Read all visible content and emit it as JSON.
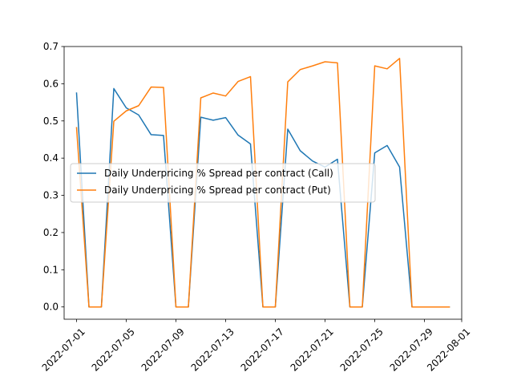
{
  "chart_data": {
    "type": "line",
    "title": "",
    "xlabel": "",
    "ylabel": "",
    "x": [
      "2022-07-01",
      "2022-07-02",
      "2022-07-03",
      "2022-07-04",
      "2022-07-05",
      "2022-07-06",
      "2022-07-07",
      "2022-07-08",
      "2022-07-09",
      "2022-07-10",
      "2022-07-11",
      "2022-07-12",
      "2022-07-13",
      "2022-07-14",
      "2022-07-15",
      "2022-07-16",
      "2022-07-17",
      "2022-07-18",
      "2022-07-19",
      "2022-07-20",
      "2022-07-21",
      "2022-07-22",
      "2022-07-23",
      "2022-07-24",
      "2022-07-25",
      "2022-07-26",
      "2022-07-27",
      "2022-07-28",
      "2022-07-29",
      "2022-07-30",
      "2022-07-31"
    ],
    "series": [
      {
        "name": "Daily Underpricing % Spread per contract (Call)",
        "color": "#1f77b4",
        "values": [
          0.575,
          0.0,
          0.0,
          0.587,
          0.535,
          0.516,
          0.463,
          0.461,
          0.0,
          0.0,
          0.51,
          0.502,
          0.509,
          0.462,
          0.438,
          0.0,
          0.0,
          0.478,
          0.42,
          0.392,
          0.376,
          0.397,
          0.0,
          0.0,
          0.414,
          0.434,
          0.376,
          0.0,
          0.0,
          0.0,
          0.0
        ]
      },
      {
        "name": "Daily Underpricing % Spread per contract (Put)",
        "color": "#ff7f0e",
        "values": [
          0.482,
          0.0,
          0.0,
          0.499,
          0.527,
          0.541,
          0.591,
          0.59,
          0.0,
          0.0,
          0.562,
          0.575,
          0.567,
          0.606,
          0.619,
          0.0,
          0.0,
          0.605,
          0.638,
          0.648,
          0.659,
          0.656,
          0.0,
          0.0,
          0.648,
          0.64,
          0.668,
          0.0,
          0.0,
          0.0,
          0.0
        ]
      }
    ],
    "xlim": [
      "2022-06-30",
      "2022-08-01"
    ],
    "ylim": [
      -0.033,
      0.7
    ],
    "yticks": [
      0.0,
      0.1,
      0.2,
      0.3,
      0.4,
      0.5,
      0.6,
      0.7
    ],
    "ytick_labels": [
      "0.0",
      "0.1",
      "0.2",
      "0.3",
      "0.4",
      "0.5",
      "0.6",
      "0.7"
    ],
    "xticks": [
      "2022-07-01",
      "2022-07-05",
      "2022-07-09",
      "2022-07-13",
      "2022-07-17",
      "2022-07-21",
      "2022-07-25",
      "2022-07-29",
      "2022-08-01"
    ],
    "xtick_labels": [
      "2022-07-01",
      "2022-07-05",
      "2022-07-09",
      "2022-07-13",
      "2022-07-17",
      "2022-07-21",
      "2022-07-25",
      "2022-07-29",
      "2022-08-01"
    ],
    "grid": false,
    "legend": "center-left"
  }
}
